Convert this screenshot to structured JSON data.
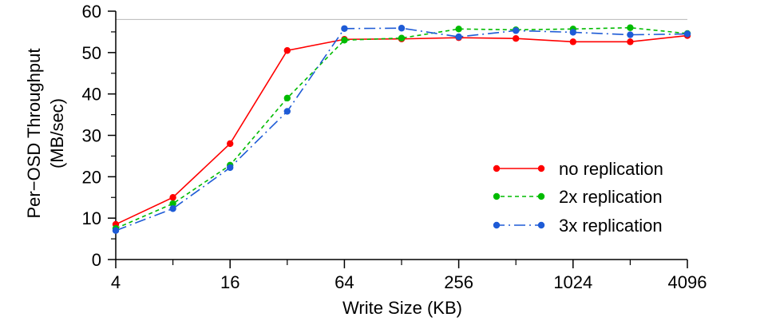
{
  "chart_data": {
    "type": "line",
    "xlabel": "Write Size (KB)",
    "ylabel_lines": [
      "Per−OSD Throughput",
      "(MB/sec)"
    ],
    "x_scale": "log2",
    "x": [
      4,
      8,
      16,
      32,
      64,
      128,
      256,
      512,
      1024,
      2048,
      4096
    ],
    "x_tick_labels": [
      "4",
      "16",
      "64",
      "256",
      "1024",
      "4096"
    ],
    "x_tick_values": [
      4,
      16,
      64,
      256,
      1024,
      4096
    ],
    "x_minor_ticks": [
      8,
      32,
      128,
      512,
      2048
    ],
    "xlim": [
      4,
      4096
    ],
    "ylim": [
      0,
      60
    ],
    "y_ticks": [
      0,
      10,
      20,
      30,
      40,
      50,
      60
    ],
    "y_minor_ticks": [
      5,
      15,
      25,
      35,
      45,
      55
    ],
    "reference_line": 58,
    "legend_position": "right",
    "series": [
      {
        "name": "no replication",
        "color": "#ff0000",
        "dash": "solid",
        "values": [
          8.5,
          15.0,
          28.0,
          50.5,
          53.2,
          53.3,
          53.6,
          53.4,
          52.6,
          52.6,
          54.1
        ]
      },
      {
        "name": "2x replication",
        "color": "#00bb00",
        "dash": "short",
        "values": [
          7.5,
          13.5,
          22.8,
          39.0,
          53.0,
          53.5,
          55.7,
          55.5,
          55.7,
          56.0,
          54.6
        ]
      },
      {
        "name": "3x replication",
        "color": "#1e5bd6",
        "dash": "long",
        "values": [
          7.0,
          12.3,
          22.2,
          35.8,
          55.8,
          55.9,
          53.8,
          55.3,
          54.9,
          54.3,
          54.5
        ]
      }
    ]
  }
}
